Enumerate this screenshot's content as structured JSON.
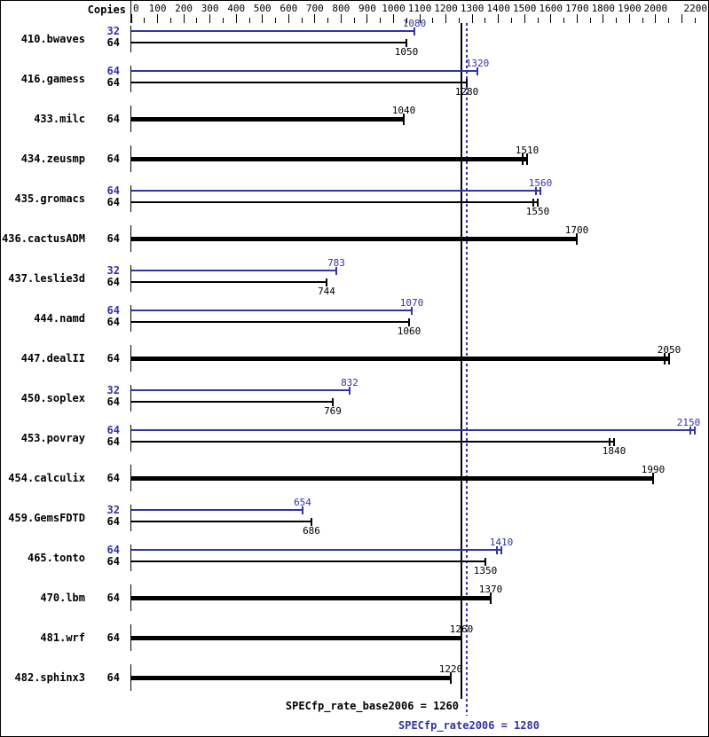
{
  "header": {
    "copies_label": "Copies"
  },
  "summary": {
    "base_text": "SPECfp_rate_base2006 = 1260",
    "peak_text": "SPECfp_rate2006 = 1280"
  },
  "colors": {
    "peak": "#3232aa",
    "base": "#000000",
    "background": "#ffffff"
  },
  "chart_data": {
    "type": "bar",
    "orientation": "horizontal",
    "axis": {
      "min": 0,
      "max": 2200,
      "major_tick": 100,
      "minor_tick": 50,
      "tick_labels": [
        0,
        100,
        200,
        300,
        400,
        500,
        600,
        700,
        800,
        900,
        1000,
        1100,
        1200,
        1300,
        1400,
        1500,
        1600,
        1700,
        1800,
        1900,
        2000,
        2200
      ]
    },
    "reference_lines": [
      {
        "name": "base",
        "value": 1260,
        "style": "solid",
        "color": "#000000"
      },
      {
        "name": "peak",
        "value": 1280,
        "style": "dotted",
        "color": "#3232aa"
      }
    ],
    "benchmarks": [
      {
        "name": "410.bwaves",
        "runs": [
          {
            "kind": "peak",
            "copies": 32,
            "value": 1080,
            "cap": "single"
          },
          {
            "kind": "base",
            "copies": 64,
            "value": 1050,
            "cap": "single"
          }
        ]
      },
      {
        "name": "416.gamess",
        "runs": [
          {
            "kind": "peak",
            "copies": 64,
            "value": 1320,
            "cap": "single"
          },
          {
            "kind": "base",
            "copies": 64,
            "value": 1280,
            "cap": "single"
          }
        ]
      },
      {
        "name": "433.milc",
        "runs": [
          {
            "kind": "base",
            "copies": 64,
            "value": 1040,
            "cap": "single"
          }
        ]
      },
      {
        "name": "434.zeusmp",
        "runs": [
          {
            "kind": "base",
            "copies": 64,
            "value": 1510,
            "cap": "double"
          }
        ]
      },
      {
        "name": "435.gromacs",
        "runs": [
          {
            "kind": "peak",
            "copies": 64,
            "value": 1560,
            "cap": "double"
          },
          {
            "kind": "base",
            "copies": 64,
            "value": 1550,
            "cap": "double"
          }
        ]
      },
      {
        "name": "436.cactusADM",
        "runs": [
          {
            "kind": "base",
            "copies": 64,
            "value": 1700,
            "cap": "single"
          }
        ]
      },
      {
        "name": "437.leslie3d",
        "runs": [
          {
            "kind": "peak",
            "copies": 32,
            "value": 783,
            "cap": "single"
          },
          {
            "kind": "base",
            "copies": 64,
            "value": 744,
            "cap": "single"
          }
        ]
      },
      {
        "name": "444.namd",
        "runs": [
          {
            "kind": "peak",
            "copies": 64,
            "value": 1070,
            "cap": "single"
          },
          {
            "kind": "base",
            "copies": 64,
            "value": 1060,
            "cap": "single"
          }
        ]
      },
      {
        "name": "447.dealII",
        "runs": [
          {
            "kind": "base",
            "copies": 64,
            "value": 2050,
            "cap": "double"
          }
        ]
      },
      {
        "name": "450.soplex",
        "runs": [
          {
            "kind": "peak",
            "copies": 32,
            "value": 832,
            "cap": "single"
          },
          {
            "kind": "base",
            "copies": 64,
            "value": 769,
            "cap": "single"
          }
        ]
      },
      {
        "name": "453.povray",
        "runs": [
          {
            "kind": "peak",
            "copies": 64,
            "value": 2150,
            "cap": "double"
          },
          {
            "kind": "base",
            "copies": 64,
            "value": 1840,
            "cap": "double"
          }
        ]
      },
      {
        "name": "454.calculix",
        "runs": [
          {
            "kind": "base",
            "copies": 64,
            "value": 1990,
            "cap": "single"
          }
        ]
      },
      {
        "name": "459.GemsFDTD",
        "runs": [
          {
            "kind": "peak",
            "copies": 32,
            "value": 654,
            "cap": "single"
          },
          {
            "kind": "base",
            "copies": 64,
            "value": 686,
            "cap": "single"
          }
        ]
      },
      {
        "name": "465.tonto",
        "runs": [
          {
            "kind": "peak",
            "copies": 64,
            "value": 1410,
            "cap": "double"
          },
          {
            "kind": "base",
            "copies": 64,
            "value": 1350,
            "cap": "single"
          }
        ]
      },
      {
        "name": "470.lbm",
        "runs": [
          {
            "kind": "base",
            "copies": 64,
            "value": 1370,
            "cap": "single"
          }
        ]
      },
      {
        "name": "481.wrf",
        "runs": [
          {
            "kind": "base",
            "copies": 64,
            "value": 1260,
            "cap": "single"
          }
        ]
      },
      {
        "name": "482.sphinx3",
        "runs": [
          {
            "kind": "base",
            "copies": 64,
            "value": 1220,
            "cap": "single"
          }
        ]
      }
    ]
  }
}
